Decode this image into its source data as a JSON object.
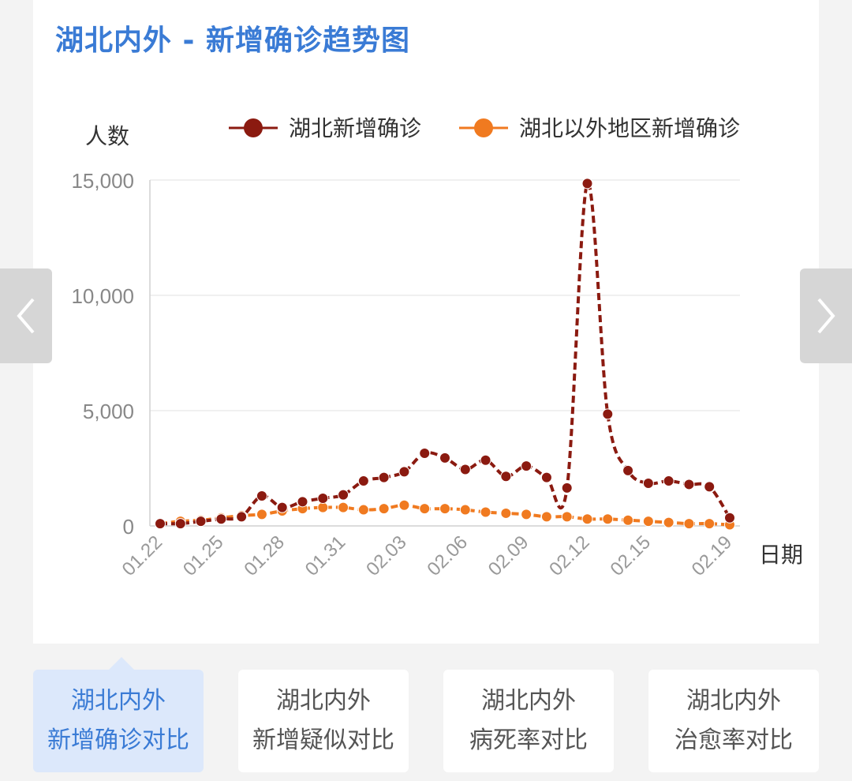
{
  "title": "湖北内外 - 新增确诊趋势图",
  "chart_data": {
    "type": "line",
    "ylabel": "人数",
    "xlabel": "日期",
    "ylim": [
      0,
      15000
    ],
    "yticks": [
      0,
      5000,
      10000,
      15000
    ],
    "ytick_labels": [
      "0",
      "5,000",
      "10,000",
      "15,000"
    ],
    "categories": [
      "01.22",
      "01.23",
      "01.24",
      "01.25",
      "01.26",
      "01.27",
      "01.28",
      "01.29",
      "01.30",
      "01.31",
      "02.01",
      "02.02",
      "02.03",
      "02.04",
      "02.05",
      "02.06",
      "02.07",
      "02.08",
      "02.09",
      "02.10",
      "02.11",
      "02.12",
      "02.13",
      "02.14",
      "02.15",
      "02.16",
      "02.17",
      "02.18",
      "02.19"
    ],
    "xtick_labels": [
      "01.22",
      "01.25",
      "01.28",
      "01.31",
      "02.03",
      "02.06",
      "02.09",
      "02.12",
      "02.15",
      "02.19"
    ],
    "xtick_index": [
      0,
      3,
      6,
      9,
      12,
      15,
      18,
      21,
      24,
      28
    ],
    "legend_position": "top",
    "series": [
      {
        "name": "湖北新增确诊",
        "color": "#8b1a10",
        "values": [
          100,
          100,
          200,
          300,
          400,
          1300,
          800,
          1050,
          1200,
          1350,
          1950,
          2100,
          2350,
          3150,
          2950,
          2450,
          2850,
          2150,
          2600,
          2100,
          1650,
          14850,
          4850,
          2400,
          1850,
          1950,
          1800,
          1700,
          350
        ]
      },
      {
        "name": "湖北以外地区新增确诊",
        "color": "#f07a20",
        "values": [
          100,
          200,
          250,
          350,
          450,
          500,
          650,
          750,
          800,
          800,
          700,
          750,
          900,
          750,
          750,
          700,
          600,
          550,
          500,
          400,
          400,
          300,
          300,
          250,
          200,
          150,
          100,
          100,
          50
        ]
      }
    ]
  },
  "tabs": [
    {
      "line1": "湖北内外",
      "line2": "新增确诊对比",
      "active": true
    },
    {
      "line1": "湖北内外",
      "line2": "新增疑似对比",
      "active": false
    },
    {
      "line1": "湖北内外",
      "line2": "病死率对比",
      "active": false
    },
    {
      "line1": "湖北内外",
      "line2": "治愈率对比",
      "active": false
    }
  ],
  "nav": {
    "prev_icon": "chevron-left-icon",
    "next_icon": "chevron-right-icon"
  }
}
